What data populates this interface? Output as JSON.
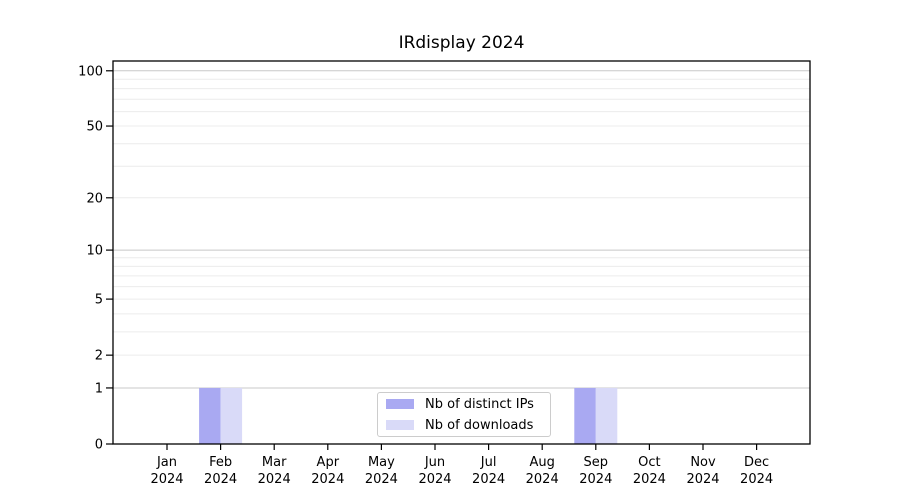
{
  "chart_data": {
    "type": "bar",
    "title": "IRdisplay 2024",
    "months": [
      "Jan",
      "Feb",
      "Mar",
      "Apr",
      "May",
      "Jun",
      "Jul",
      "Aug",
      "Sep",
      "Oct",
      "Nov",
      "Dec"
    ],
    "year_label": "2024",
    "categories": [
      "Jan 2024",
      "Feb 2024",
      "Mar 2024",
      "Apr 2024",
      "May 2024",
      "Jun 2024",
      "Jul 2024",
      "Aug 2024",
      "Sep 2024",
      "Oct 2024",
      "Nov 2024",
      "Dec 2024"
    ],
    "series": [
      {
        "name": "Nb of distinct IPs",
        "color": "#a9a9f2",
        "values": [
          0,
          1,
          0,
          0,
          0,
          0,
          0,
          0,
          1,
          0,
          0,
          0
        ]
      },
      {
        "name": "Nb of downloads",
        "color": "#d9daf8",
        "values": [
          0,
          1,
          0,
          0,
          0,
          0,
          0,
          0,
          1,
          0,
          0,
          0
        ]
      }
    ],
    "yscale": "log1p",
    "ylim": [
      0,
      113
    ],
    "yticks": [
      0,
      1,
      2,
      5,
      10,
      20,
      50,
      100
    ],
    "major_gridlines": [
      1,
      10,
      100
    ],
    "minor_gridlines": [
      2,
      3,
      4,
      5,
      6,
      7,
      8,
      9,
      20,
      30,
      40,
      50,
      60,
      70,
      80,
      90
    ],
    "grid": true,
    "legend_position": "bottom-center",
    "colors": {
      "bar_distinct_ips": "#a9a9f2",
      "bar_downloads": "#d9daf8",
      "major_grid": "#c8c8c8",
      "minor_grid": "#ececec",
      "axis": "#000000",
      "legend_border": "#cccccc",
      "text": "#000000"
    }
  }
}
